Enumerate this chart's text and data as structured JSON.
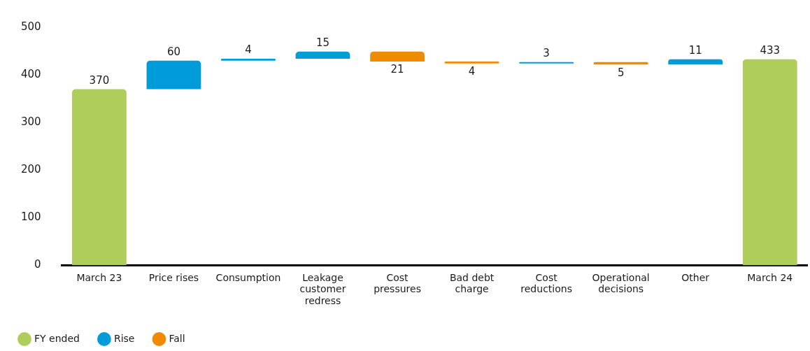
{
  "chart_data": {
    "type": "bar",
    "categories": [
      "March 23",
      "Price rises",
      "Consumption",
      "Leakage customer redress",
      "Cost pressures",
      "Bad debt charge",
      "Cost reductions",
      "Operational decisions",
      "Other",
      "March 24"
    ],
    "series": [
      {
        "name": "FY ended",
        "color": "#afcd5a",
        "values": [
          370,
          null,
          null,
          null,
          null,
          null,
          null,
          null,
          null,
          433
        ],
        "base": [
          0,
          null,
          null,
          null,
          null,
          null,
          null,
          null,
          null,
          0
        ],
        "value_labels": [
          "370",
          null,
          null,
          null,
          null,
          null,
          null,
          null,
          null,
          "433"
        ]
      },
      {
        "name": "Rise",
        "color": "#009bd9",
        "values": [
          null,
          60,
          4,
          15,
          null,
          null,
          3,
          null,
          11,
          null
        ],
        "base": [
          null,
          370,
          430,
          434,
          null,
          null,
          424,
          null,
          422,
          null
        ],
        "value_labels": [
          null,
          "60",
          "4",
          "15",
          null,
          null,
          "3",
          null,
          "11",
          null
        ]
      },
      {
        "name": "Fall",
        "color": "#f08a00",
        "values": [
          null,
          null,
          null,
          null,
          -21,
          -4,
          null,
          -5,
          null,
          null
        ],
        "base": [
          null,
          null,
          null,
          null,
          449,
          428,
          null,
          427,
          null,
          null
        ],
        "value_labels": [
          null,
          null,
          null,
          null,
          "21",
          "4",
          null,
          "5",
          null,
          null
        ]
      }
    ],
    "ylim": [
      0,
      500
    ],
    "yticks": [
      0,
      100,
      200,
      300,
      400,
      500
    ],
    "grid": false,
    "legend": "bottom left"
  }
}
